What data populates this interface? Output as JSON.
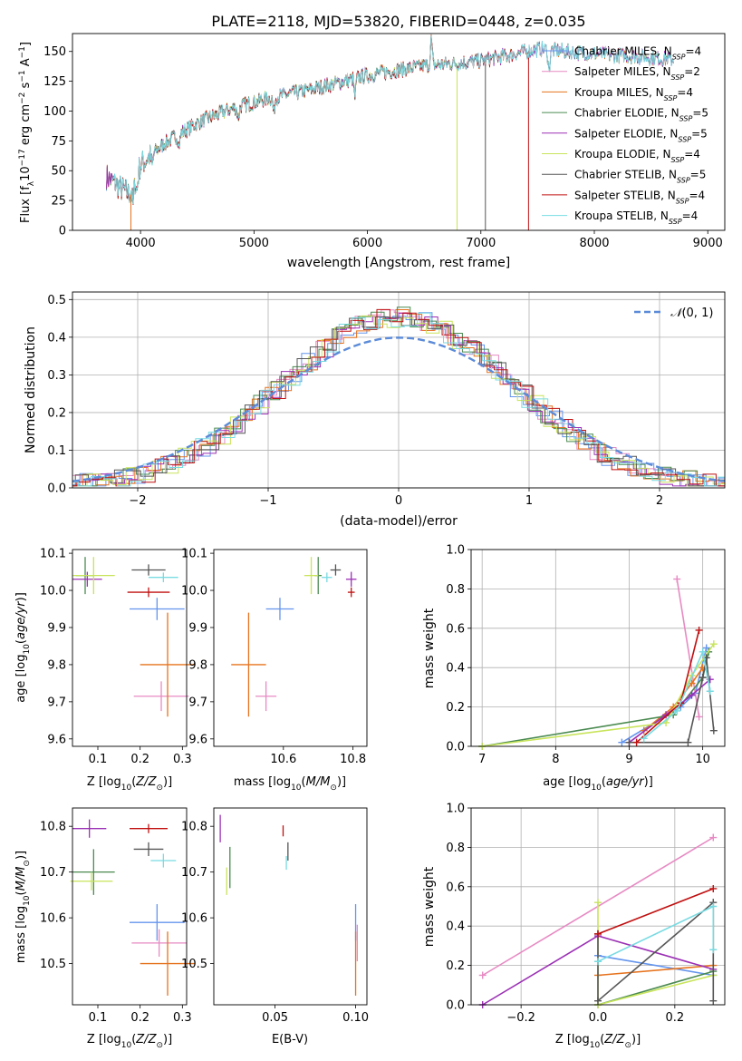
{
  "colors": {
    "Chabrier MILES": "#6495ed",
    "Salpeter MILES": "#e78ac3",
    "Kroupa MILES": "#e6731e",
    "Chabrier ELODIE": "#4a8a50",
    "Salpeter ELODIE": "#9b30b5",
    "Kroupa ELODIE": "#c8e45a",
    "Chabrier STELIB": "#555555",
    "Salpeter STELIB": "#c01010",
    "Kroupa STELIB": "#78dbe2"
  },
  "chart_data": [
    {
      "id": "spectrum",
      "type": "line",
      "title": "PLATE=2118, MJD=53820, FIBERID=0448, z=0.035",
      "xlabel": "wavelength [Angstrom, rest frame]",
      "ylabel": "Flux [f$_\\lambda$10$^{-17}$ erg cm$^{-2}$ s$^{-1}$ A$^{-1}$]",
      "xlim": [
        3400,
        9150
      ],
      "ylim": [
        0,
        165
      ],
      "xticks": [
        "4000",
        "5000",
        "6000",
        "7000",
        "8000",
        "9000"
      ],
      "yticks": [
        "0",
        "25",
        "50",
        "75",
        "100",
        "125",
        "150"
      ],
      "legend_position": "upper-right",
      "legend": [
        {
          "label": "Chabrier MILES, N",
          "sub": "SSP",
          "suffix": "=4",
          "color": "#6495ed"
        },
        {
          "label": "Salpeter MILES, N",
          "sub": "SSP",
          "suffix": "=2",
          "color": "#e78ac3"
        },
        {
          "label": "Kroupa MILES, N",
          "sub": "SSP",
          "suffix": "=4",
          "color": "#e6731e"
        },
        {
          "label": "Chabrier ELODIE, N",
          "sub": "SSP",
          "suffix": "=5",
          "color": "#4a8a50"
        },
        {
          "label": "Salpeter ELODIE, N",
          "sub": "SSP",
          "suffix": "=5",
          "color": "#9b30b5"
        },
        {
          "label": "Kroupa ELODIE, N",
          "sub": "SSP",
          "suffix": "=4",
          "color": "#c8e45a"
        },
        {
          "label": "Chabrier STELIB, N",
          "sub": "SSP",
          "suffix": "=5",
          "color": "#555555"
        },
        {
          "label": "Salpeter STELIB, N",
          "sub": "SSP",
          "suffix": "=4",
          "color": "#c01010"
        },
        {
          "label": "Kroupa STELIB, N",
          "sub": "SSP",
          "suffix": "=4",
          "color": "#78dbe2"
        }
      ],
      "continuum": [
        [
          3700,
          45
        ],
        [
          3900,
          30
        ],
        [
          4000,
          55
        ],
        [
          4200,
          72
        ],
        [
          4500,
          90
        ],
        [
          4800,
          102
        ],
        [
          5100,
          110
        ],
        [
          5500,
          118
        ],
        [
          6000,
          130
        ],
        [
          6500,
          138
        ],
        [
          7000,
          142
        ],
        [
          7500,
          152
        ],
        [
          8000,
          148
        ],
        [
          8500,
          145
        ],
        [
          8700,
          143
        ]
      ],
      "cutoffs": [
        {
          "model": "Kroupa ELODIE",
          "x": 6790
        },
        {
          "model": "Chabrier STELIB",
          "x": 7040
        },
        {
          "model": "Salpeter STELIB",
          "x": 7420
        }
      ]
    },
    {
      "id": "residuals",
      "type": "histogram",
      "xlabel": "(data-model)/error",
      "ylabel": "Normed distribution",
      "xlim": [
        -2.5,
        2.5
      ],
      "ylim": [
        0,
        0.52
      ],
      "xticks": [
        "−2",
        "−1",
        "0",
        "1",
        "2"
      ],
      "yticks": [
        "0.0",
        "0.1",
        "0.2",
        "0.3",
        "0.4",
        "0.5"
      ],
      "grid": true,
      "legend_position": "upper-right",
      "legend_label": "N(0, 1)",
      "normal_curve_color": "#5b8bd8",
      "bin_width": 0.1
    },
    {
      "id": "age-vs-Z",
      "type": "scatter",
      "xlabel": "Z [log10(Z/Z⊙)]",
      "ylabel": "age [log10(age/yr)]",
      "xlim": [
        0.04,
        0.31
      ],
      "ylim": [
        9.58,
        10.11
      ],
      "xticks": [
        "0.1",
        "0.2",
        "0.3"
      ],
      "yticks": [
        "9.6",
        "9.7",
        "9.8",
        "9.9",
        "10.0",
        "10.1"
      ],
      "points": [
        {
          "model": "Chabrier MILES",
          "x": 0.24,
          "y": 9.95,
          "xerr": 0.065,
          "yerr": 0.03
        },
        {
          "model": "Salpeter MILES",
          "x": 0.25,
          "y": 9.715,
          "xerr": 0.065,
          "yerr": 0.04
        },
        {
          "model": "Kroupa MILES",
          "x": 0.265,
          "y": 9.8,
          "xerr": 0.065,
          "yerr": 0.14
        },
        {
          "model": "Chabrier ELODIE",
          "x": 0.07,
          "y": 10.04,
          "xerr": 0.022,
          "yerr": 0.05
        },
        {
          "model": "Salpeter ELODIE",
          "x": 0.075,
          "y": 10.03,
          "xerr": 0.035,
          "yerr": 0.02
        },
        {
          "model": "Kroupa ELODIE",
          "x": 0.09,
          "y": 10.04,
          "xerr": 0.05,
          "yerr": 0.05
        },
        {
          "model": "Chabrier STELIB",
          "x": 0.22,
          "y": 10.055,
          "xerr": 0.04,
          "yerr": 0.015
        },
        {
          "model": "Salpeter STELIB",
          "x": 0.22,
          "y": 9.995,
          "xerr": 0.05,
          "yerr": 0.013
        },
        {
          "model": "Kroupa STELIB",
          "x": 0.255,
          "y": 10.035,
          "xerr": 0.035,
          "yerr": 0.013
        }
      ]
    },
    {
      "id": "age-vs-mass",
      "type": "scatter",
      "xlabel": "mass [log10(M/M⊙)]",
      "ylabel": "",
      "xlim": [
        10.4,
        10.84
      ],
      "ylim": [
        9.58,
        10.11
      ],
      "xticks": [
        "10.6",
        "10.8"
      ],
      "yticks": [
        "9.6",
        "9.7",
        "9.8",
        "9.9",
        "10.0",
        "10.1"
      ],
      "points": [
        {
          "model": "Chabrier MILES",
          "x": 10.59,
          "y": 9.95,
          "xerr": 0.04,
          "yerr": 0.03
        },
        {
          "model": "Salpeter MILES",
          "x": 10.55,
          "y": 9.715,
          "xerr": 0.03,
          "yerr": 0.04
        },
        {
          "model": "Kroupa MILES",
          "x": 10.5,
          "y": 9.8,
          "xerr": 0.05,
          "yerr": 0.14
        },
        {
          "model": "Chabrier ELODIE",
          "x": 10.7,
          "y": 10.04,
          "xerr": 0.01,
          "yerr": 0.05
        },
        {
          "model": "Salpeter ELODIE",
          "x": 10.795,
          "y": 10.03,
          "xerr": 0.015,
          "yerr": 0.02
        },
        {
          "model": "Kroupa ELODIE",
          "x": 10.68,
          "y": 10.04,
          "xerr": 0.02,
          "yerr": 0.05
        },
        {
          "model": "Chabrier STELIB",
          "x": 10.75,
          "y": 10.055,
          "xerr": 0.015,
          "yerr": 0.015
        },
        {
          "model": "Salpeter STELIB",
          "x": 10.795,
          "y": 9.995,
          "xerr": 0.01,
          "yerr": 0.013
        },
        {
          "model": "Kroupa STELIB",
          "x": 10.725,
          "y": 10.035,
          "xerr": 0.015,
          "yerr": 0.013
        }
      ]
    },
    {
      "id": "weight-vs-age",
      "type": "line",
      "xlabel": "age [log10(age/yr)]",
      "ylabel": "mass weight",
      "xlim": [
        6.85,
        10.3
      ],
      "ylim": [
        0,
        1
      ],
      "xticks": [
        "7",
        "8",
        "9",
        "10"
      ],
      "yticks": [
        "0.0",
        "0.2",
        "0.4",
        "0.6",
        "0.8",
        "1.0"
      ],
      "grid": true,
      "series": [
        {
          "model": "Chabrier MILES",
          "points": [
            [
              8.9,
              0.02
            ],
            [
              9.7,
              0.2
            ],
            [
              9.9,
              0.27
            ],
            [
              10.05,
              0.5
            ]
          ]
        },
        {
          "model": "Salpeter MILES",
          "points": [
            [
              9.65,
              0.85
            ],
            [
              9.95,
              0.15
            ]
          ]
        },
        {
          "model": "Kroupa MILES",
          "points": [
            [
              9.2,
              0.08
            ],
            [
              9.6,
              0.2
            ],
            [
              9.85,
              0.32
            ],
            [
              10.0,
              0.4
            ]
          ]
        },
        {
          "model": "Chabrier ELODIE",
          "points": [
            [
              7.0,
              0.0
            ],
            [
              9.6,
              0.16
            ],
            [
              10.0,
              0.35
            ],
            [
              10.08,
              0.48
            ]
          ]
        },
        {
          "model": "Salpeter ELODIE",
          "points": [
            [
              9.0,
              0.02
            ],
            [
              9.5,
              0.16
            ],
            [
              9.85,
              0.26
            ],
            [
              10.1,
              0.34
            ]
          ]
        },
        {
          "model": "Kroupa ELODIE",
          "points": [
            [
              7.0,
              0.0
            ],
            [
              9.5,
              0.12
            ],
            [
              9.85,
              0.36
            ],
            [
              10.15,
              0.52
            ]
          ]
        },
        {
          "model": "Chabrier STELIB",
          "points": [
            [
              9.0,
              0.02
            ],
            [
              9.8,
              0.02
            ],
            [
              10.0,
              0.35
            ],
            [
              10.05,
              0.45
            ],
            [
              10.15,
              0.08
            ]
          ]
        },
        {
          "model": "Salpeter STELIB",
          "points": [
            [
              9.1,
              0.02
            ],
            [
              9.7,
              0.22
            ],
            [
              9.95,
              0.59
            ]
          ]
        },
        {
          "model": "Kroupa STELIB",
          "points": [
            [
              9.2,
              0.04
            ],
            [
              9.65,
              0.18
            ],
            [
              10.0,
              0.48
            ],
            [
              10.1,
              0.28
            ]
          ]
        }
      ]
    },
    {
      "id": "mass-vs-Z",
      "type": "scatter",
      "xlabel": "Z [log10(Z/Z⊙)]",
      "ylabel": "mass [log10(M/M⊙)]",
      "xlim": [
        0.04,
        0.31
      ],
      "ylim": [
        10.41,
        10.84
      ],
      "xticks": [
        "0.1",
        "0.2",
        "0.3"
      ],
      "yticks": [
        "10.5",
        "10.6",
        "10.7",
        "10.8"
      ],
      "points": [
        {
          "model": "Chabrier MILES",
          "x": 0.24,
          "y": 10.59,
          "xerr": 0.065,
          "yerr": 0.04
        },
        {
          "model": "Salpeter MILES",
          "x": 0.245,
          "y": 10.545,
          "xerr": 0.065,
          "yerr": 0.03
        },
        {
          "model": "Kroupa MILES",
          "x": 0.265,
          "y": 10.5,
          "xerr": 0.065,
          "yerr": 0.07
        },
        {
          "model": "Chabrier ELODIE",
          "x": 0.09,
          "y": 10.7,
          "xerr": 0.05,
          "yerr": 0.05
        },
        {
          "model": "Salpeter ELODIE",
          "x": 0.08,
          "y": 10.795,
          "xerr": 0.04,
          "yerr": 0.02
        },
        {
          "model": "Kroupa ELODIE",
          "x": 0.085,
          "y": 10.68,
          "xerr": 0.05,
          "yerr": 0.02
        },
        {
          "model": "Chabrier STELIB",
          "x": 0.22,
          "y": 10.75,
          "xerr": 0.035,
          "yerr": 0.015
        },
        {
          "model": "Salpeter STELIB",
          "x": 0.22,
          "y": 10.795,
          "xerr": 0.045,
          "yerr": 0.01
        },
        {
          "model": "Kroupa STELIB",
          "x": 0.255,
          "y": 10.725,
          "xerr": 0.03,
          "yerr": 0.015
        }
      ]
    },
    {
      "id": "mass-vs-ebv",
      "type": "scatter",
      "xlabel": "E(B-V)",
      "ylabel": "",
      "xlim": [
        0.012,
        0.107
      ],
      "ylim": [
        10.41,
        10.84
      ],
      "xticks": [
        "0.05",
        "0.10"
      ],
      "yticks": [
        "10.5",
        "10.6",
        "10.7",
        "10.8"
      ],
      "points": [
        {
          "model": "Chabrier MILES",
          "x": 0.1,
          "y": 10.59,
          "xerr": 0.0,
          "yerr": 0.04
        },
        {
          "model": "Salpeter MILES",
          "x": 0.101,
          "y": 10.545,
          "xerr": 0.0,
          "yerr": 0.04
        },
        {
          "model": "Kroupa MILES",
          "x": 0.1,
          "y": 10.5,
          "xerr": 0.0,
          "yerr": 0.07
        },
        {
          "model": "Chabrier ELODIE",
          "x": 0.022,
          "y": 10.71,
          "xerr": 0.0,
          "yerr": 0.045
        },
        {
          "model": "Salpeter ELODIE",
          "x": 0.016,
          "y": 10.795,
          "xerr": 0.0,
          "yerr": 0.03
        },
        {
          "model": "Kroupa ELODIE",
          "x": 0.02,
          "y": 10.68,
          "xerr": 0.0,
          "yerr": 0.03
        },
        {
          "model": "Chabrier STELIB",
          "x": 0.058,
          "y": 10.745,
          "xerr": 0.0,
          "yerr": 0.02
        },
        {
          "model": "Salpeter STELIB",
          "x": 0.055,
          "y": 10.79,
          "xerr": 0.0,
          "yerr": 0.012
        },
        {
          "model": "Kroupa STELIB",
          "x": 0.057,
          "y": 10.72,
          "xerr": 0.0,
          "yerr": 0.015
        }
      ]
    },
    {
      "id": "weight-vs-Z",
      "type": "line",
      "xlabel": "Z [log10(Z/Z⊙)]",
      "ylabel": "mass weight",
      "xlim": [
        -0.33,
        0.33
      ],
      "ylim": [
        0,
        1
      ],
      "xticks": [
        "−0.2",
        "0.0",
        "0.2"
      ],
      "yticks": [
        "0.0",
        "0.2",
        "0.4",
        "0.6",
        "0.8",
        "1.0"
      ],
      "grid": true,
      "series": [
        {
          "model": "Chabrier MILES",
          "points": [
            [
              0.0,
              0.25
            ],
            [
              0.3,
              0.15
            ]
          ]
        },
        {
          "model": "Salpeter MILES",
          "points": [
            [
              -0.3,
              0.15
            ],
            [
              0.3,
              0.85
            ]
          ]
        },
        {
          "model": "Kroupa MILES",
          "points": [
            [
              0.0,
              0.15
            ],
            [
              0.3,
              0.2
            ]
          ]
        },
        {
          "model": "Chabrier ELODIE",
          "points": [
            [
              0.0,
              0.0
            ],
            [
              0.3,
              0.17
            ]
          ]
        },
        {
          "model": "Salpeter ELODIE",
          "points": [
            [
              -0.3,
              0.0
            ],
            [
              0.0,
              0.35
            ],
            [
              0.3,
              0.18
            ]
          ]
        },
        {
          "model": "Kroupa ELODIE",
          "points": [
            [
              0.0,
              0.52
            ],
            [
              0.0,
              0.0
            ],
            [
              0.3,
              0.15
            ]
          ]
        },
        {
          "model": "Chabrier STELIB",
          "points": [
            [
              0.0,
              0.36
            ],
            [
              0.0,
              0.02
            ],
            [
              0.3,
              0.52
            ],
            [
              0.3,
              0.02
            ]
          ]
        },
        {
          "model": "Salpeter STELIB",
          "points": [
            [
              0.0,
              0.36
            ],
            [
              0.3,
              0.59
            ]
          ]
        },
        {
          "model": "Kroupa STELIB",
          "points": [
            [
              0.0,
              0.22
            ],
            [
              0.3,
              0.5
            ],
            [
              0.3,
              0.28
            ]
          ]
        }
      ]
    }
  ]
}
